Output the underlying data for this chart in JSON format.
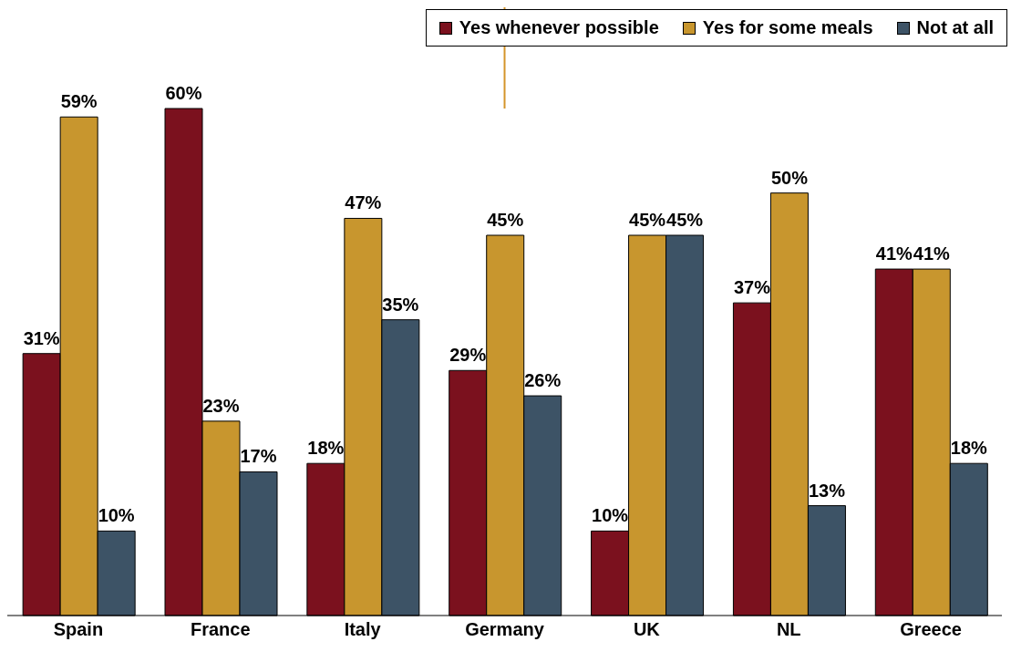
{
  "chart_data": {
    "type": "bar",
    "categories": [
      "Spain",
      "France",
      "Italy",
      "Germany",
      "UK",
      "NL",
      "Greece"
    ],
    "series": [
      {
        "name": "Yes whenever possible",
        "color": "#7b111e",
        "values": [
          31,
          60,
          18,
          29,
          10,
          37,
          41
        ],
        "value_labels": [
          "31%",
          "60%",
          "18%",
          "29%",
          "10%",
          "37%",
          "41%"
        ]
      },
      {
        "name": "Yes for some meals",
        "color": "#c8962e",
        "values": [
          59,
          23,
          47,
          45,
          45,
          50,
          41
        ],
        "value_labels": [
          "59%",
          "23%",
          "47%",
          "45%",
          "45%",
          "50%",
          "41%"
        ]
      },
      {
        "name": "Not at all",
        "color": "#3d5366",
        "values": [
          10,
          17,
          35,
          26,
          45,
          13,
          18
        ],
        "value_labels": [
          "10%",
          "17%",
          "35%",
          "26%",
          "45%",
          "13%",
          "18%"
        ]
      }
    ],
    "legend": "top right"
  }
}
